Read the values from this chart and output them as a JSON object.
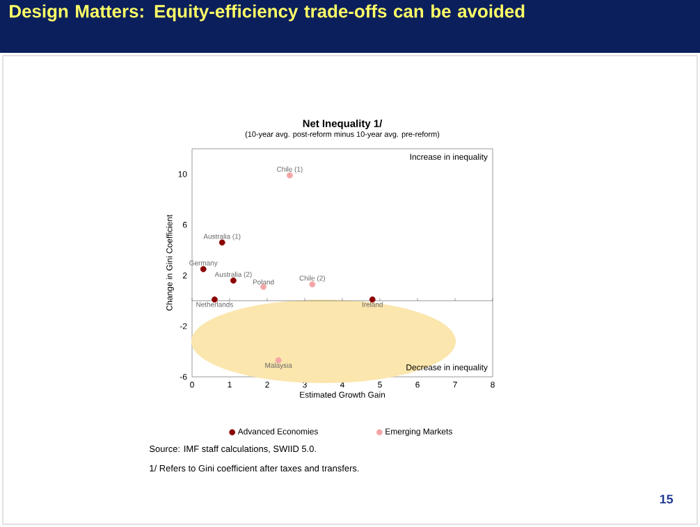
{
  "chart_data": {
    "type": "scatter",
    "title": "Net Inequality 1/",
    "subtitle": "(10-year avg. post-reform minus 10-year avg. pre-reform)",
    "xlabel": "Estimated Growth Gain",
    "ylabel": "Change in Gini Coefficient",
    "xlim": [
      0,
      8
    ],
    "ylim": [
      -6,
      12
    ],
    "xticks": [
      0,
      1,
      2,
      3,
      4,
      5,
      6,
      7,
      8
    ],
    "yticks": [
      -6,
      -2,
      2,
      6,
      10
    ],
    "legend": "bottom",
    "ref_lines": [
      {
        "axis": "y",
        "value": 0
      }
    ],
    "series": [
      {
        "name": "Advanced Economies",
        "color": "#8b0000",
        "x": [
          0.3,
          0.8,
          1.1,
          0.6,
          4.8
        ],
        "values": [
          2.5,
          4.6,
          1.6,
          0.1,
          0.1
        ]
      },
      {
        "name": "Emerging Markets",
        "color": "#f4a6a6",
        "x": [
          2.6,
          1.9,
          3.2,
          2.3
        ],
        "values": [
          9.9,
          1.1,
          1.3,
          -4.7
        ]
      }
    ],
    "annotations": [
      "Design Matters: Equity-efficiency trade-offs can be avoided",
      "Increase in inequality",
      "Decrease in inequality",
      "Source: IMF staff calculations, SWIID 5.0.",
      "1/ Refers to Gini coefficient after taxes and transfers.",
      "15",
      {
        "text": "Germany",
        "x": 0.3,
        "y": 2.5
      },
      {
        "text": "Australia (1)",
        "x": 0.8,
        "y": 4.6
      },
      {
        "text": "Australia (2)",
        "x": 1.1,
        "y": 1.6
      },
      {
        "text": "Netherlands",
        "x": 0.6,
        "y": 0.1
      },
      {
        "text": "Ireland",
        "x": 4.8,
        "y": 0.1
      },
      {
        "text": "Chile (1)",
        "x": 2.6,
        "y": 9.9
      },
      {
        "text": "Poland",
        "x": 1.9,
        "y": 1.1
      },
      {
        "text": "Chile (2)",
        "x": 3.2,
        "y": 1.3
      },
      {
        "text": "Malaysia",
        "x": 2.3,
        "y": -4.7
      }
    ]
  }
}
